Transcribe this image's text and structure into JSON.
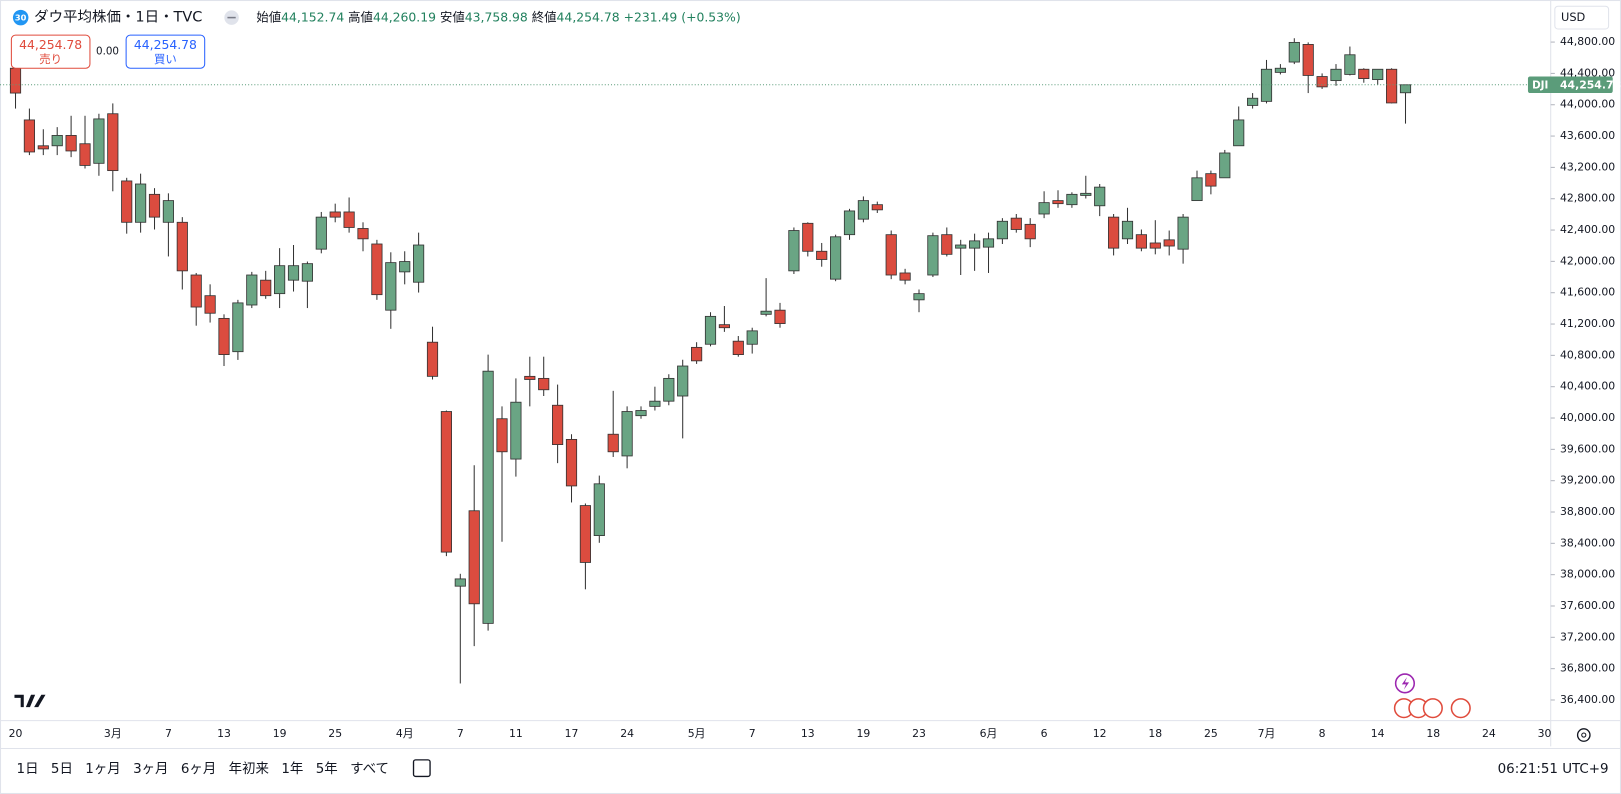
{
  "header": {
    "badge": "30",
    "title": "ダウ平均株価・1日・TVC",
    "open_label": "始値",
    "open": "44,152.74",
    "high_label": "高値",
    "high": "44,260.19",
    "low_label": "安値",
    "low": "43,758.98",
    "close_label": "終値",
    "close": "44,254.78",
    "change": "+231.49 (+0.53%)"
  },
  "trade": {
    "sell_price": "44,254.78",
    "sell_label": "売り",
    "spread": "0.00",
    "buy_price": "44,254.78",
    "buy_label": "買い"
  },
  "currency": "USD",
  "toolbar": {
    "ranges": [
      "1日",
      "5日",
      "1ヶ月",
      "3ヶ月",
      "6ヶ月",
      "年初来",
      "1年",
      "5年",
      "すべて"
    ],
    "clock": "06:21:51 UTC+9"
  },
  "chart_data": {
    "type": "candlestick",
    "symbol": "DJI",
    "last_price_label": "44,254.78",
    "up_color": "#6aa584",
    "down_color": "#db4c3f",
    "categories": [
      "20",
      null,
      null,
      null,
      null,
      null,
      null,
      "3月",
      null,
      null,
      null,
      "7",
      null,
      null,
      null,
      "13",
      null,
      null,
      null,
      "19",
      null,
      null,
      null,
      "25",
      null,
      null,
      null,
      null,
      "4月",
      null,
      null,
      null,
      "7",
      null,
      null,
      null,
      "11",
      null,
      null,
      null,
      "17",
      null,
      null,
      null,
      "24",
      null,
      null,
      null,
      null,
      "5月",
      null,
      null,
      null,
      "7",
      null,
      null,
      null,
      "13",
      null,
      null,
      null,
      "19",
      null,
      null,
      null,
      "23",
      null,
      null,
      null,
      null,
      "6月",
      null,
      null,
      null,
      "6",
      null,
      null,
      null,
      "12",
      null,
      null,
      null,
      "18",
      null,
      null,
      null,
      "25",
      null,
      null,
      null,
      "7月",
      null,
      null,
      null,
      "8",
      null,
      null,
      null,
      "14",
      null,
      null,
      null,
      "18",
      null,
      null,
      null,
      "24",
      null,
      null,
      null,
      "30"
    ],
    "open": [
      44466,
      43806,
      43476,
      43476,
      43608,
      43502,
      43252,
      43885,
      43027,
      42499,
      42856,
      42499,
      42499,
      41826,
      41562,
      41272,
      40847,
      41443,
      41760,
      41588,
      41760,
      41747,
      42156,
      42631,
      42631,
      42420,
      42222,
      41377,
      41866,
      41734,
      40968,
      40083,
      37853,
      38816,
      37378,
      39991,
      39476,
      40532,
      40506,
      40163,
      39727,
      38882,
      38499,
      39793,
      39516,
      40030,
      40149,
      40215,
      40281,
      40902,
      40942,
      41192,
      40981,
      40942,
      41324,
      41377,
      41879,
      42486,
      42129,
      41773,
      42341,
      42539,
      42724,
      42341,
      41852,
      41509,
      41826,
      42341,
      42169,
      42169,
      42182,
      42288,
      42552,
      42473,
      42605,
      42776,
      42724,
      42842,
      42710,
      42565,
      42288,
      42341,
      42235,
      42275,
      42156,
      42776,
      43120,
      43067,
      43476,
      43991,
      44043,
      44413,
      44545,
      44770,
      44360,
      44308,
      44387,
      44453,
      44321,
      44453,
      44152.74,
      null,
      null,
      null,
      null,
      null,
      null,
      null,
      null,
      null,
      null
    ],
    "high": [
      44572,
      43951,
      43687,
      43714,
      43859,
      43859,
      43885,
      44017,
      43067,
      43120,
      42935,
      42869,
      42565,
      41852,
      41707,
      41324,
      41509,
      41866,
      41879,
      42169,
      42209,
      41998,
      42631,
      42737,
      42816,
      42499,
      42275,
      42116,
      42129,
      42367,
      41166,
      40096,
      38011,
      39397,
      40810,
      40149,
      40506,
      40783,
      40783,
      40427,
      39793,
      38909,
      39265,
      40347,
      40149,
      40149,
      40400,
      40559,
      40744,
      40968,
      41351,
      41430,
      41047,
      41153,
      41786,
      41470,
      42433,
      42499,
      42235,
      42341,
      42671,
      42829,
      42763,
      42394,
      41905,
      41641,
      42367,
      42433,
      42275,
      42354,
      42367,
      42552,
      42605,
      42552,
      42895,
      42908,
      42882,
      43093,
      42988,
      42605,
      42684,
      42407,
      42526,
      42394,
      42605,
      43159,
      43159,
      43423,
      43978,
      44149,
      44572,
      44519,
      44849,
      44796,
      44400,
      44519,
      44743,
      44466,
      44453,
      44466,
      44260.19,
      null,
      null,
      null,
      null,
      null,
      null,
      null,
      null,
      null,
      null
    ],
    "low": [
      43951,
      43357,
      43357,
      43357,
      43331,
      43186,
      43093,
      42895,
      42354,
      42367,
      42407,
      42063,
      41641,
      41179,
      41219,
      40664,
      40742,
      41404,
      41522,
      41404,
      41615,
      41404,
      42103,
      42499,
      42367,
      42129,
      41509,
      41139,
      41707,
      41602,
      40492,
      38236,
      36611,
      37087,
      37285,
      38420,
      39252,
      40149,
      40281,
      39424,
      38922,
      37813,
      38407,
      39503,
      39358,
      39991,
      40096,
      40163,
      39740,
      40691,
      40915,
      41100,
      40783,
      40823,
      41298,
      41153,
      41839,
      42063,
      41932,
      41747,
      42275,
      42499,
      42618,
      41773,
      41707,
      41351,
      41800,
      42063,
      41826,
      41879,
      41852,
      42222,
      42367,
      42182,
      42552,
      42684,
      42684,
      42803,
      42578,
      42076,
      42222,
      42129,
      42090,
      42076,
      41971,
      42776,
      42856,
      43067,
      43476,
      43951,
      44017,
      44387,
      44519,
      44149,
      44202,
      44242,
      44374,
      44281,
      44255,
      44017,
      43758.98,
      null,
      null,
      null,
      null,
      null,
      null,
      null,
      null,
      null,
      null
    ],
    "close": [
      44149,
      43397,
      43436,
      43608,
      43410,
      43225,
      43819,
      43159,
      42499,
      42988,
      42565,
      42776,
      41879,
      41417,
      41338,
      40810,
      41470,
      41826,
      41562,
      41945,
      41945,
      41971,
      42565,
      42565,
      42433,
      42288,
      41575,
      41984,
      41998,
      42209,
      40532,
      38288,
      37946,
      37628,
      40598,
      39569,
      40202,
      40492,
      40361,
      39661,
      39133,
      38156,
      39160,
      39569,
      40083,
      40096,
      40215,
      40506,
      40664,
      40730,
      41298,
      41153,
      40810,
      41113,
      41364,
      41206,
      42394,
      42129,
      42024,
      42314,
      42644,
      42776,
      42658,
      41826,
      41760,
      41588,
      42328,
      42090,
      42209,
      42262,
      42288,
      42512,
      42407,
      42288,
      42750,
      42737,
      42856,
      42869,
      42948,
      42169,
      42512,
      42169,
      42169,
      42196,
      42565,
      43067,
      42961,
      43384,
      43806,
      44083,
      44453,
      44466,
      44796,
      44374,
      44228,
      44453,
      44638,
      44334,
      44453,
      44023,
      44254.78,
      null,
      null,
      null,
      null,
      null,
      null,
      null,
      null,
      null,
      null
    ],
    "ylim": [
      36137,
      45337
    ],
    "yticks": [
      {
        "value": 36400,
        "label": "36,400.00"
      },
      {
        "value": 36800,
        "label": "36,800.00"
      },
      {
        "value": 37200,
        "label": "37,200.00"
      },
      {
        "value": 37600,
        "label": "37,600.00"
      },
      {
        "value": 38000,
        "label": "38,000.00"
      },
      {
        "value": 38400,
        "label": "38,400.00"
      },
      {
        "value": 38800,
        "label": "38,800.00"
      },
      {
        "value": 39200,
        "label": "39,200.00"
      },
      {
        "value": 39600,
        "label": "39,600.00"
      },
      {
        "value": 40000,
        "label": "40,000.00"
      },
      {
        "value": 40400,
        "label": "40,400.00"
      },
      {
        "value": 40800,
        "label": "40,800.00"
      },
      {
        "value": 41200,
        "label": "41,200.00"
      },
      {
        "value": 41600,
        "label": "41,600.00"
      },
      {
        "value": 42000,
        "label": "42,000.00"
      },
      {
        "value": 42400,
        "label": "42,400.00"
      },
      {
        "value": 42800,
        "label": "42,800.00"
      },
      {
        "value": 43200,
        "label": "43,200.00"
      },
      {
        "value": 43600,
        "label": "43,600.00"
      },
      {
        "value": 44000,
        "label": "44,000.00"
      },
      {
        "value": 44400,
        "label": "44,400.00"
      },
      {
        "value": 44800,
        "label": "44,800.00"
      }
    ]
  }
}
